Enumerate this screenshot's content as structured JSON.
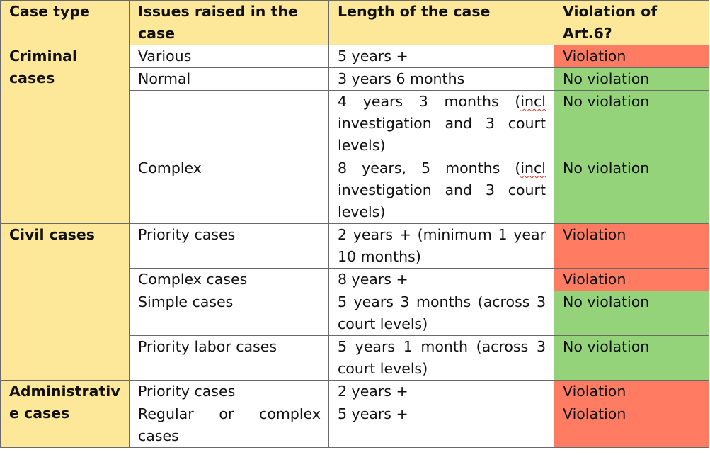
{
  "table": {
    "headers": [
      "Case type",
      "Issues raised in the case",
      "Length of the case",
      "Violation of Art.6?"
    ],
    "groups": [
      {
        "case_type": "Criminal cases",
        "rows": [
          {
            "issue": "Various",
            "length": "5 years +",
            "verdict": "Violation"
          },
          {
            "issue": "Normal",
            "length": "3 years 6 months",
            "verdict": "No violation"
          },
          {
            "issue": "",
            "length_parts": [
              "4 years 3 months (",
              "incl",
              " investigation and 3 court levels)"
            ],
            "verdict": "No violation"
          },
          {
            "issue": "Complex",
            "length_parts": [
              "8 years, 5 months (",
              "incl",
              " investigation and 3 court levels)"
            ],
            "verdict": "No violation"
          }
        ]
      },
      {
        "case_type": "Civil cases",
        "rows": [
          {
            "issue": "Priority cases",
            "length": "2 years + (minimum 1 year 10 months)",
            "verdict": "Violation"
          },
          {
            "issue": "Complex cases",
            "length": "8 years +",
            "verdict": "Violation"
          },
          {
            "issue": "Simple cases",
            "length": "5 years 3 months (across 3 court levels)",
            "verdict": "No violation"
          },
          {
            "issue": "Priority labor cases",
            "length": "5 years 1 month (across 3 court levels)",
            "verdict": "No violation"
          }
        ]
      },
      {
        "case_type": "Administrative cases",
        "rows": [
          {
            "issue": "Priority cases",
            "length": "2 years +",
            "verdict": "Violation"
          },
          {
            "issue": "Regular or complex cases",
            "length": "5 years +",
            "verdict": "Violation"
          }
        ]
      }
    ]
  },
  "colors": {
    "header_fill": "#fde89a",
    "violation_fill": "#ff7c62",
    "no_violation_fill": "#94d37a",
    "spellcheck_underline": "#d23a2a"
  }
}
